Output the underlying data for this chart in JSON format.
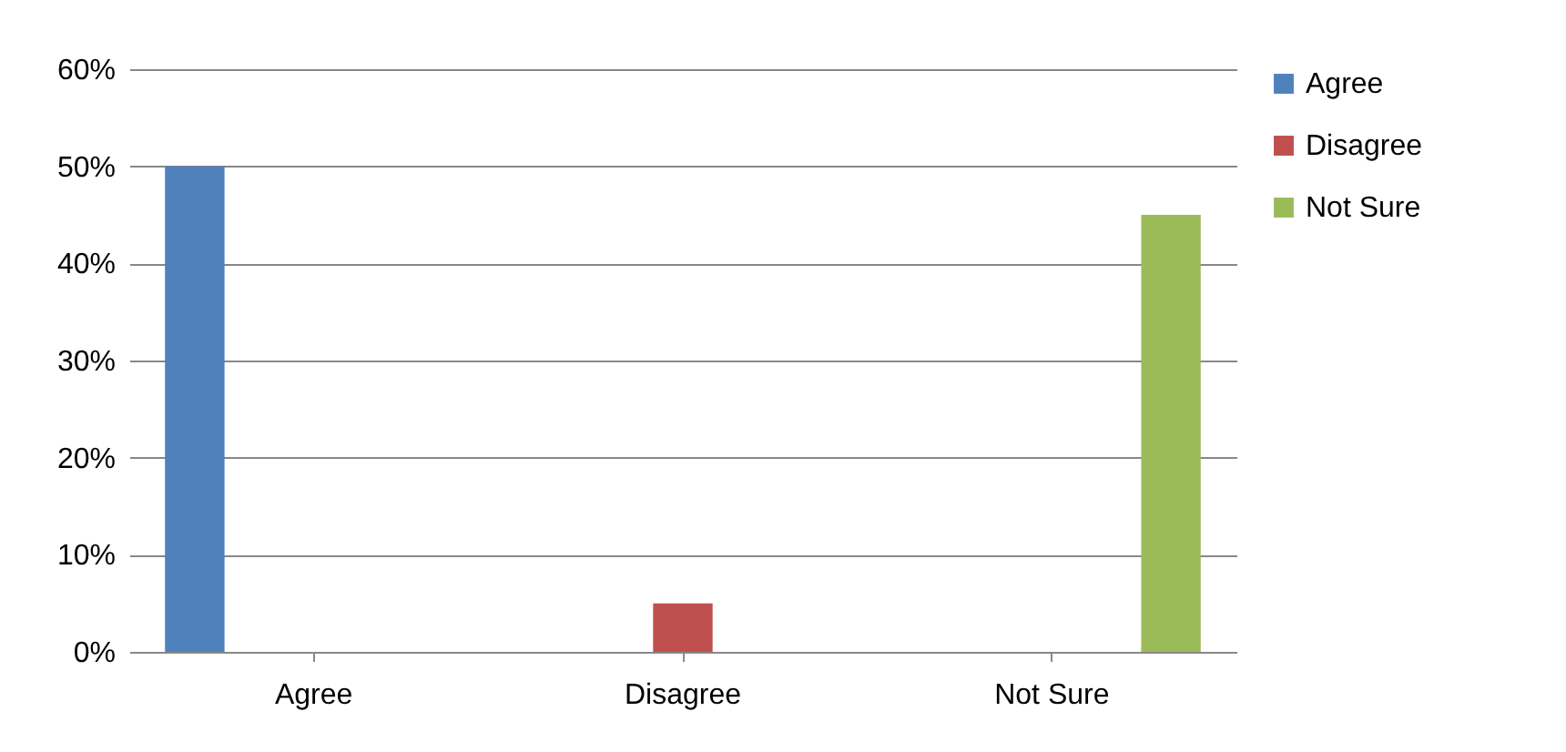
{
  "chart_data": {
    "type": "bar",
    "categories": [
      "Agree",
      "Disagree",
      "Not Sure"
    ],
    "series": [
      {
        "name": "Agree",
        "color": "#4f81bd",
        "values": [
          50,
          null,
          null
        ]
      },
      {
        "name": "Disagree",
        "color": "#c0504d",
        "values": [
          null,
          5,
          null
        ]
      },
      {
        "name": "Not Sure",
        "color": "#9bbb59",
        "values": [
          null,
          null,
          45
        ]
      }
    ],
    "ylim": [
      0,
      60
    ],
    "yticks": [
      {
        "value": 0,
        "label": "0%"
      },
      {
        "value": 10,
        "label": "10%"
      },
      {
        "value": 20,
        "label": "20%"
      },
      {
        "value": 30,
        "label": "30%"
      },
      {
        "value": 40,
        "label": "40%"
      },
      {
        "value": 50,
        "label": "50%"
      },
      {
        "value": 60,
        "label": "60%"
      }
    ],
    "grid": "y",
    "legend": "right"
  }
}
